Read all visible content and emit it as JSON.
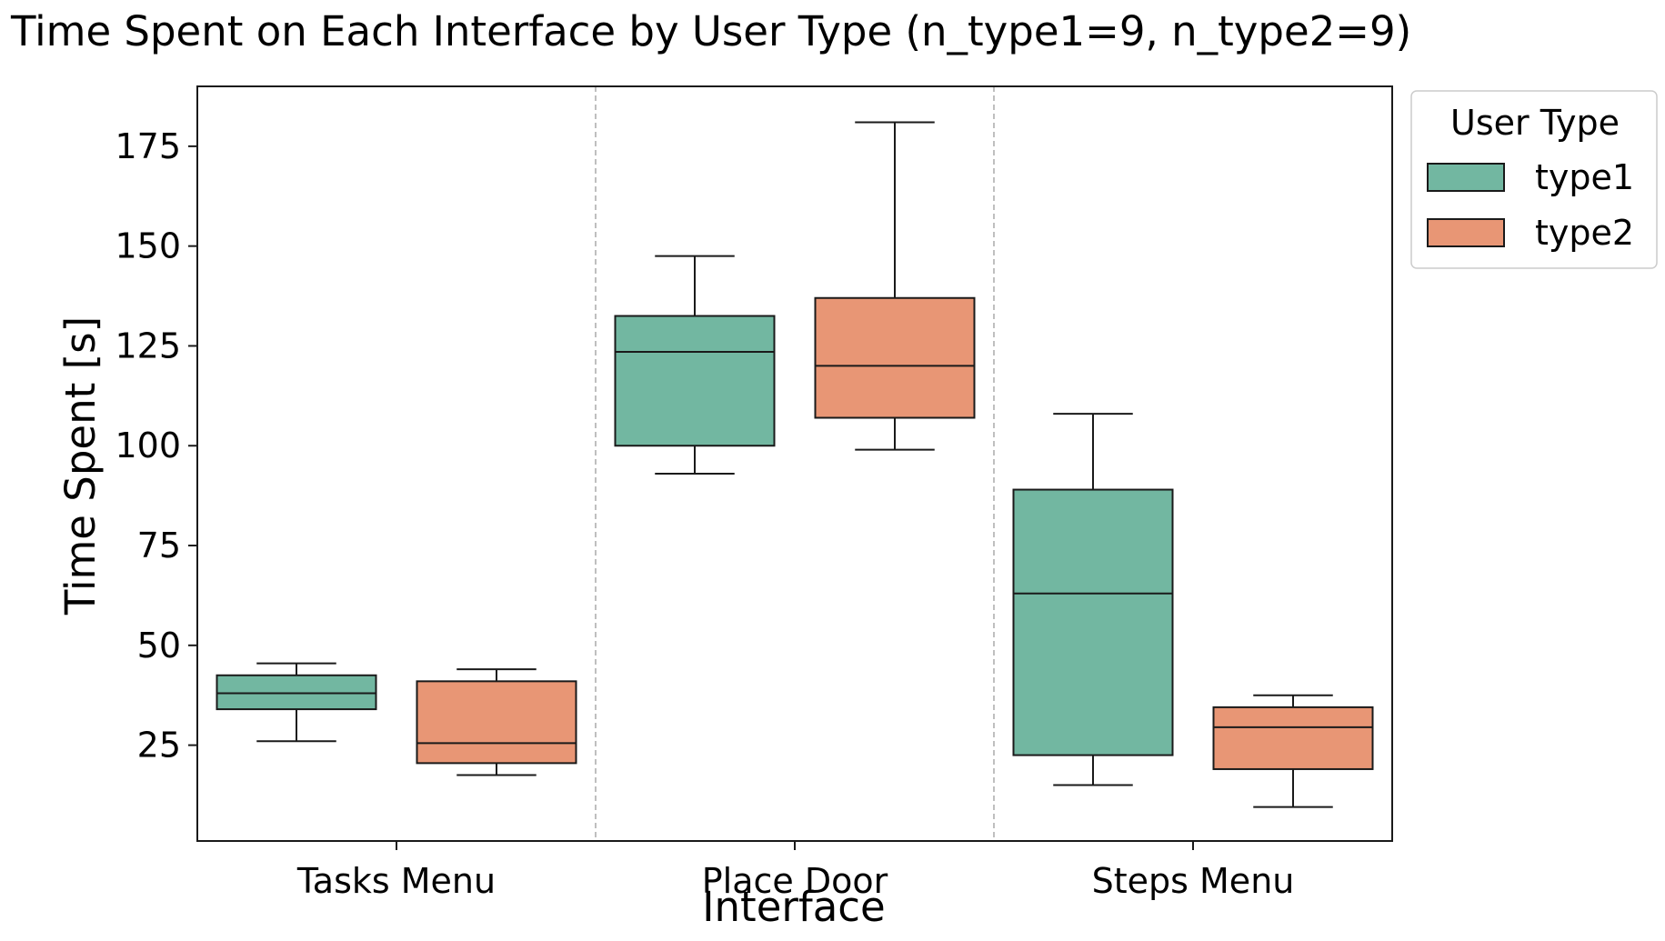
{
  "chart_data": {
    "type": "box",
    "title": "Time Spent on Each Interface by User Type (n_type1=9, n_type2=9)",
    "xlabel": "Interface",
    "ylabel": "Time Spent [s]",
    "categories": [
      "Tasks Menu",
      "Place Door",
      "Steps Menu"
    ],
    "ylim": [
      1,
      190
    ],
    "yticks": [
      25,
      50,
      75,
      100,
      125,
      150,
      175
    ],
    "grid": false,
    "category_separators": true,
    "legend": {
      "title": "User Type",
      "position": "outside-top-right"
    },
    "series": [
      {
        "name": "type1",
        "color": "#72b7a1",
        "boxes": [
          {
            "whisker_low": 26,
            "q1": 34,
            "median": 38,
            "q3": 42.5,
            "whisker_high": 45.5
          },
          {
            "whisker_low": 93,
            "q1": 100,
            "median": 123.5,
            "q3": 132.5,
            "whisker_high": 147.5
          },
          {
            "whisker_low": 15,
            "q1": 22.5,
            "median": 63,
            "q3": 89,
            "whisker_high": 108
          }
        ]
      },
      {
        "name": "type2",
        "color": "#e89675",
        "boxes": [
          {
            "whisker_low": 17.5,
            "q1": 20.5,
            "median": 25.5,
            "q3": 41,
            "whisker_high": 44
          },
          {
            "whisker_low": 99,
            "q1": 107,
            "median": 120,
            "q3": 137,
            "whisker_high": 181
          },
          {
            "whisker_low": 9.5,
            "q1": 19,
            "median": 29.5,
            "q3": 34.5,
            "whisker_high": 37.5
          }
        ]
      }
    ]
  }
}
